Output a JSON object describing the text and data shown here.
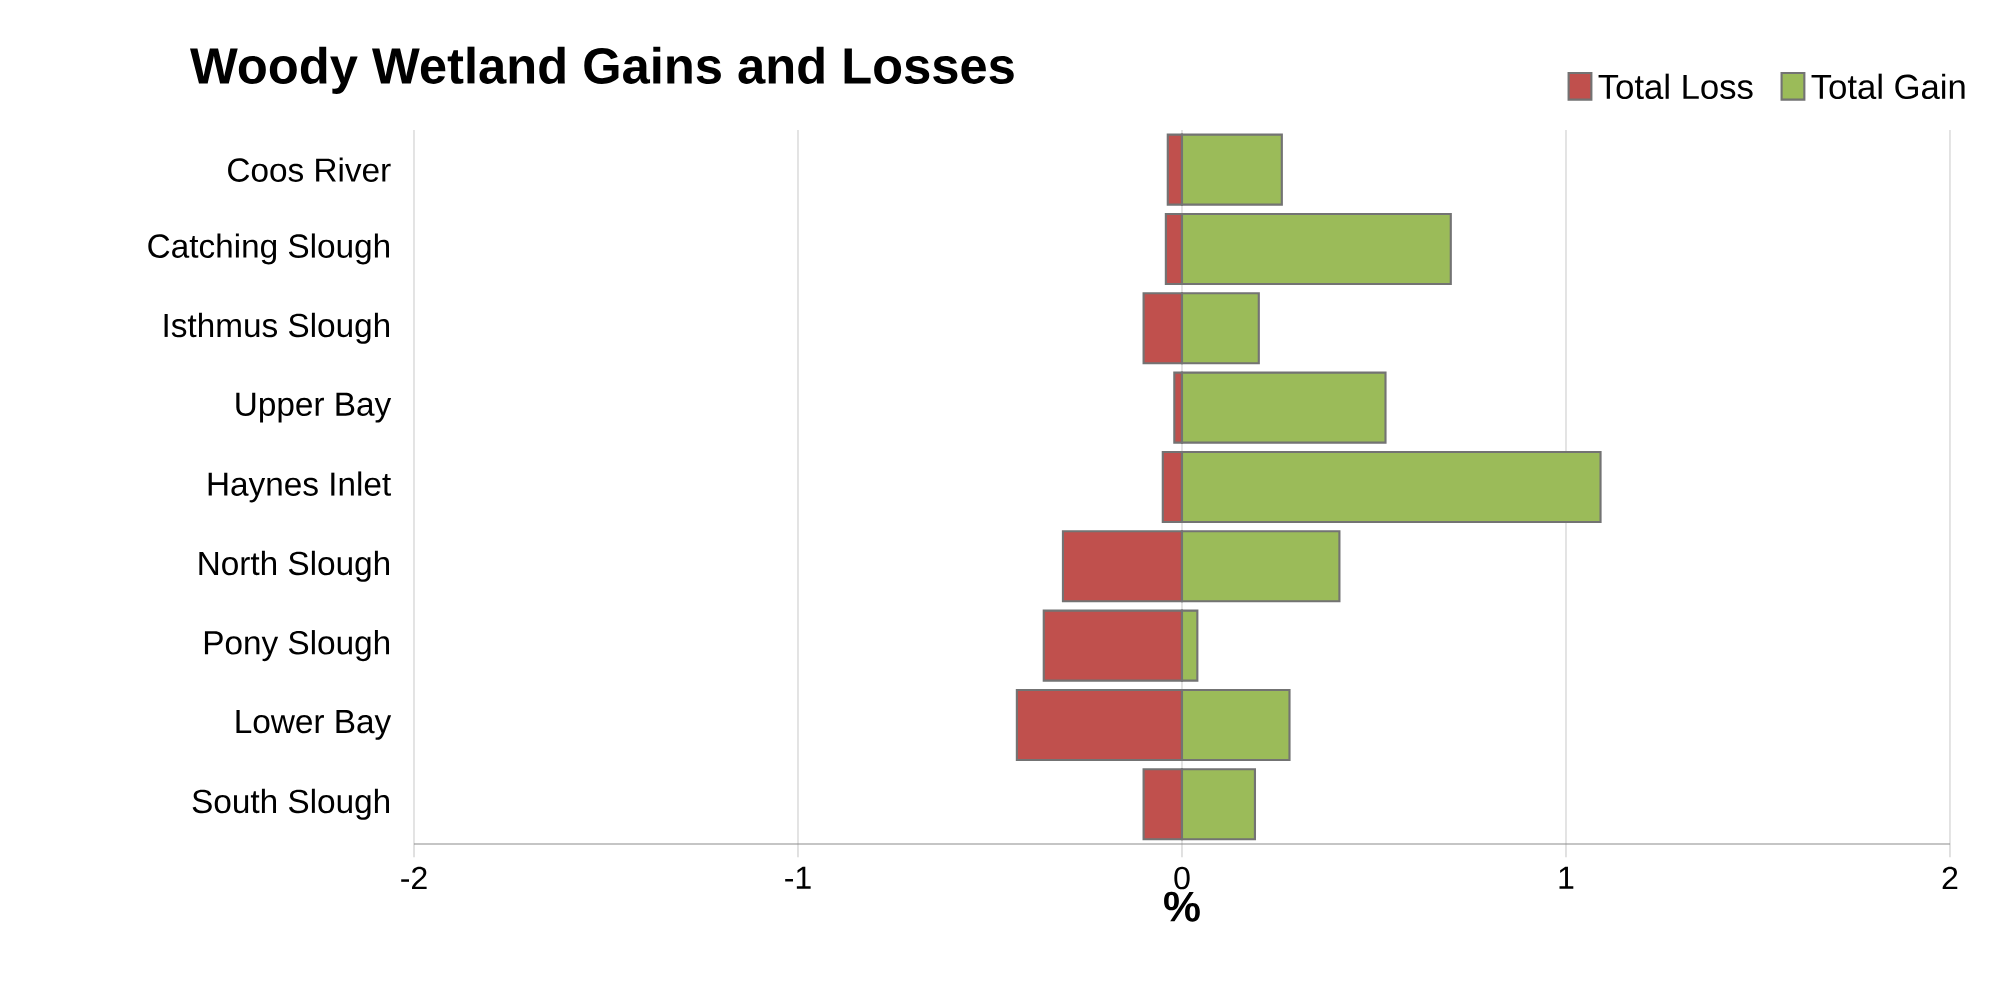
{
  "chart_data": {
    "type": "bar",
    "orientation": "horizontal",
    "stacked": true,
    "title": "Woody Wetland Gains and Losses",
    "xlabel": "%",
    "categories": [
      "Coos River",
      "Catching Slough",
      "Isthmus Slough",
      "Upper Bay",
      "Haynes Inlet",
      "North Slough",
      "Pony Slough",
      "Lower Bay",
      "South Slough"
    ],
    "series": [
      {
        "name": "Total Loss",
        "color": "#c0504d",
        "values": [
          -0.037,
          -0.042,
          -0.1,
          -0.02,
          -0.05,
          -0.31,
          -0.36,
          -0.43,
          -0.1
        ]
      },
      {
        "name": "Total Gain",
        "color": "#9bbb59",
        "values": [
          0.26,
          0.7,
          0.2,
          0.53,
          1.09,
          0.41,
          0.04,
          0.28,
          0.19
        ]
      }
    ],
    "xlim": [
      -2,
      2
    ],
    "xticks": [
      -2,
      -1,
      0,
      1,
      2
    ],
    "grid": "x",
    "legend": "top right"
  }
}
